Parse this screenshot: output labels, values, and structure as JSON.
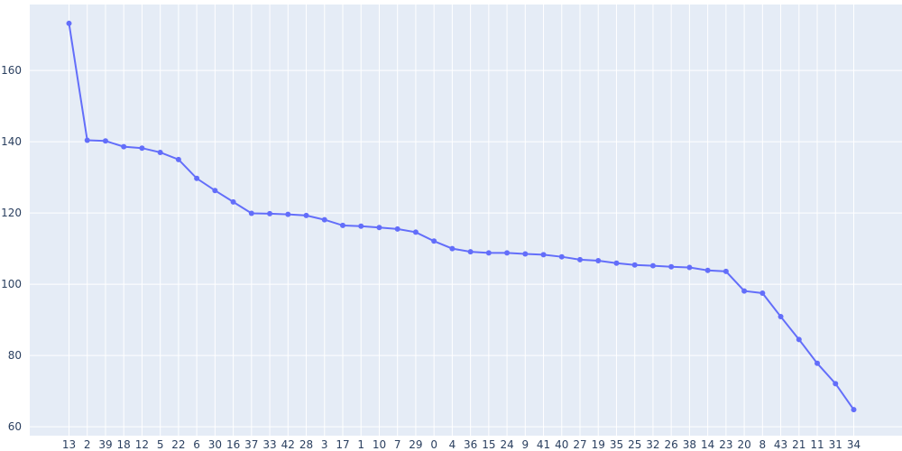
{
  "colors": {
    "plot_bg": "#e5ecf6",
    "grid": "#ffffff",
    "line": "#636efa",
    "text": "#2a3f5f"
  },
  "chart_data": {
    "type": "line",
    "title": "",
    "xlabel": "",
    "ylabel": "",
    "grid": true,
    "legend": "none",
    "ylim": [
      57.5,
      178.5
    ],
    "yticks": [
      60,
      80,
      100,
      120,
      140,
      160
    ],
    "categories": [
      "13",
      "2",
      "39",
      "18",
      "12",
      "5",
      "22",
      "6",
      "30",
      "16",
      "37",
      "33",
      "42",
      "28",
      "3",
      "17",
      "1",
      "10",
      "7",
      "29",
      "0",
      "4",
      "36",
      "15",
      "24",
      "9",
      "41",
      "40",
      "27",
      "19",
      "35",
      "25",
      "32",
      "26",
      "38",
      "14",
      "23",
      "20",
      "8",
      "43",
      "21",
      "11",
      "31",
      "34"
    ],
    "series": [
      {
        "values": [
          173.2,
          140.4,
          140.2,
          138.6,
          138.2,
          137.0,
          135.0,
          129.7,
          126.3,
          123.1,
          119.9,
          119.8,
          119.6,
          119.3,
          118.1,
          116.5,
          116.3,
          115.9,
          115.5,
          114.6,
          112.1,
          110.0,
          109.1,
          108.8,
          108.8,
          108.5,
          108.3,
          107.7,
          106.9,
          106.6,
          105.9,
          105.4,
          105.2,
          104.9,
          104.7,
          103.9,
          103.6,
          98.1,
          97.5,
          90.9,
          84.5,
          77.8,
          72.1,
          64.8
        ]
      }
    ]
  }
}
